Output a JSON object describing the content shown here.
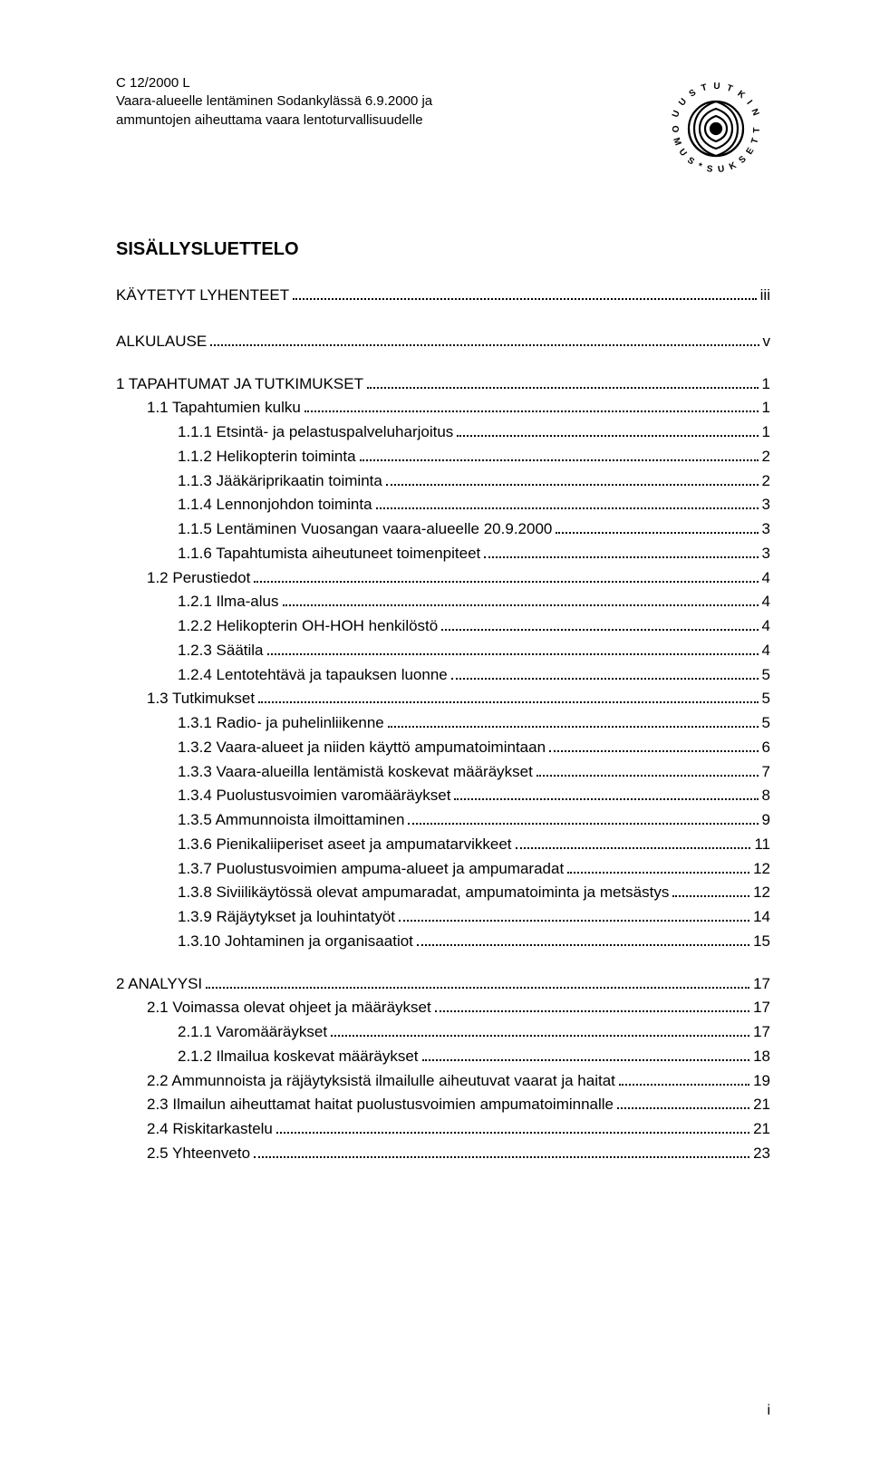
{
  "doc_ref": "C 12/2000 L",
  "header_line1": "Vaara-alueelle lentäminen Sodankylässä 6.9.2000 ja",
  "header_line2": "ammuntojen aiheuttama vaara lentoturvallisuudelle",
  "toc_title": "SISÄLLYSLUETTELO",
  "page_number": "i",
  "entries": [
    {
      "level": "lvl0",
      "label": "KÄYTETYT LYHENTEET",
      "page": "iii",
      "gap_before": false
    },
    {
      "level": "lvl0",
      "label": "ALKULAUSE",
      "page": "v",
      "gap_before": true
    },
    {
      "level": "lvl1",
      "label": "1 TAPAHTUMAT JA TUTKIMUKSET",
      "page": "1",
      "gap_before": true
    },
    {
      "level": "lvl2",
      "label": "1.1   Tapahtumien kulku",
      "page": "1",
      "gap_before": false
    },
    {
      "level": "lvl3",
      "label": "1.1.1 Etsintä- ja pelastuspalveluharjoitus",
      "page": "1",
      "gap_before": false
    },
    {
      "level": "lvl3",
      "label": "1.1.2 Helikopterin toiminta",
      "page": "2",
      "gap_before": false
    },
    {
      "level": "lvl3",
      "label": "1.1.3 Jääkäriprikaatin toiminta",
      "page": "2",
      "gap_before": false
    },
    {
      "level": "lvl3",
      "label": "1.1.4 Lennonjohdon toiminta",
      "page": "3",
      "gap_before": false
    },
    {
      "level": "lvl3",
      "label": "1.1.5 Lentäminen Vuosangan vaara-alueelle 20.9.2000",
      "page": "3",
      "gap_before": false
    },
    {
      "level": "lvl3",
      "label": "1.1.6 Tapahtumista aiheutuneet toimenpiteet",
      "page": "3",
      "gap_before": false
    },
    {
      "level": "lvl2",
      "label": "1.2   Perustiedot",
      "page": "4",
      "gap_before": false
    },
    {
      "level": "lvl3",
      "label": "1.2.1 Ilma-alus",
      "page": "4",
      "gap_before": false
    },
    {
      "level": "lvl3",
      "label": "1.2.2 Helikopterin OH-HOH henkilöstö",
      "page": "4",
      "gap_before": false
    },
    {
      "level": "lvl3",
      "label": "1.2.3 Säätila",
      "page": "4",
      "gap_before": false
    },
    {
      "level": "lvl3",
      "label": "1.2.4 Lentotehtävä ja tapauksen luonne",
      "page": "5",
      "gap_before": false
    },
    {
      "level": "lvl2",
      "label": "1.3   Tutkimukset",
      "page": "5",
      "gap_before": false
    },
    {
      "level": "lvl3",
      "label": "1.3.1 Radio- ja puhelinliikenne",
      "page": "5",
      "gap_before": false
    },
    {
      "level": "lvl3",
      "label": "1.3.2 Vaara-alueet ja niiden käyttö ampumatoimintaan",
      "page": "6",
      "gap_before": false
    },
    {
      "level": "lvl3",
      "label": "1.3.3 Vaara-alueilla lentämistä koskevat määräykset",
      "page": "7",
      "gap_before": false
    },
    {
      "level": "lvl3",
      "label": "1.3.4 Puolustusvoimien varomääräykset",
      "page": "8",
      "gap_before": false
    },
    {
      "level": "lvl3",
      "label": "1.3.5 Ammunnoista ilmoittaminen",
      "page": "9",
      "gap_before": false
    },
    {
      "level": "lvl3",
      "label": "1.3.6 Pienikaliiperiset aseet ja ampumatarvikkeet",
      "page": "11",
      "gap_before": false
    },
    {
      "level": "lvl3",
      "label": "1.3.7 Puolustusvoimien ampuma-alueet ja ampumaradat",
      "page": "12",
      "gap_before": false
    },
    {
      "level": "lvl3",
      "label": "1.3.8 Siviilikäytössä olevat ampumaradat, ampumatoiminta ja metsästys",
      "page": "12",
      "gap_before": false
    },
    {
      "level": "lvl3",
      "label": "1.3.9 Räjäytykset ja louhintatyöt",
      "page": "14",
      "gap_before": false
    },
    {
      "level": "lvl3",
      "label": "1.3.10  Johtaminen ja organisaatiot",
      "page": "15",
      "gap_before": false
    },
    {
      "level": "lvl1",
      "label": "2 ANALYYSI",
      "page": "17",
      "gap_before": true
    },
    {
      "level": "lvl2",
      "label": "2.1   Voimassa olevat ohjeet ja määräykset",
      "page": "17",
      "gap_before": false
    },
    {
      "level": "lvl3",
      "label": "2.1.1 Varomääräykset",
      "page": "17",
      "gap_before": false
    },
    {
      "level": "lvl3",
      "label": "2.1.2 Ilmailua koskevat määräykset",
      "page": "18",
      "gap_before": false
    },
    {
      "level": "lvl2",
      "label": "2.2   Ammunnoista ja räjäytyksistä ilmailulle aiheutuvat vaarat ja haitat",
      "page": "19",
      "gap_before": false
    },
    {
      "level": "lvl2",
      "label": "2.3   Ilmailun aiheuttamat haitat puolustusvoimien ampumatoiminnalle",
      "page": "21",
      "gap_before": false
    },
    {
      "level": "lvl2",
      "label": "2.4   Riskitarkastelu",
      "page": "21",
      "gap_before": false
    },
    {
      "level": "lvl2",
      "label": "2.5   Yhteenveto",
      "page": "23",
      "gap_before": false
    }
  ]
}
